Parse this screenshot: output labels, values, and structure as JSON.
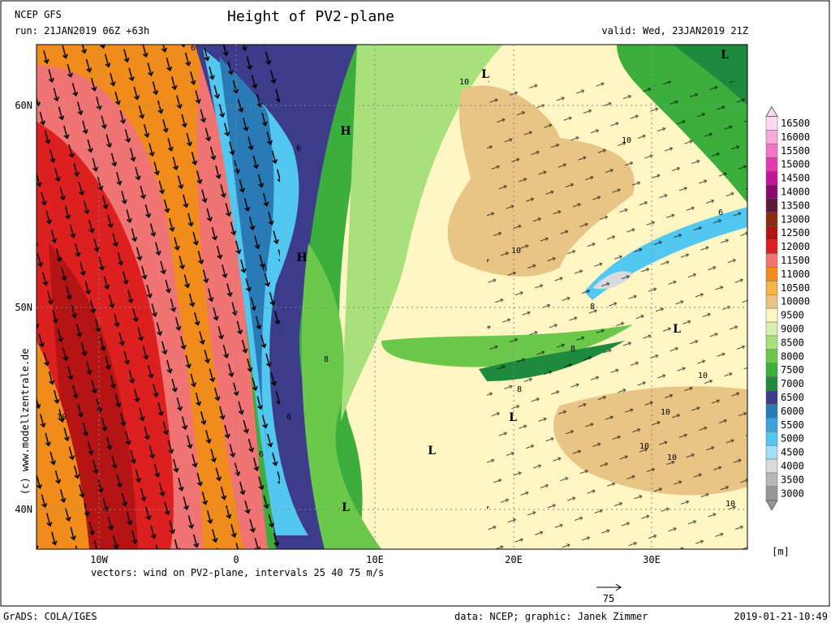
{
  "header": {
    "model": "NCEP GFS",
    "title": "Height of PV2-plane",
    "run": "run: 21JAN2019 06Z +63h",
    "valid": "valid: Wed, 23JAN2019 21Z"
  },
  "map": {
    "lat_labels": [
      "60N",
      "50N",
      "40N"
    ],
    "lon_labels": [
      "10W",
      "0",
      "10E",
      "20E",
      "30E"
    ],
    "pressure_labels": [
      "H",
      "H",
      "L",
      "L",
      "L",
      "L",
      "L",
      "L"
    ],
    "contour_labels": [
      "6",
      "10",
      "10",
      "6",
      "6",
      "10",
      "6",
      "8",
      "8",
      "8",
      "8",
      "10",
      "10",
      "10",
      "10",
      "6",
      "6",
      "10",
      "10"
    ],
    "copyright": "(c) www.modellzentrale.de"
  },
  "legend": {
    "unit": "[m]",
    "levels": [
      {
        "label": "16500",
        "color": "#fcd9ee"
      },
      {
        "label": "16000",
        "color": "#f9a9da"
      },
      {
        "label": "15500",
        "color": "#f474c6"
      },
      {
        "label": "15000",
        "color": "#e43cb0"
      },
      {
        "label": "14500",
        "color": "#c4149a"
      },
      {
        "label": "14000",
        "color": "#8a0a6e"
      },
      {
        "label": "13500",
        "color": "#5c1a3a"
      },
      {
        "label": "13000",
        "color": "#8c2a12"
      },
      {
        "label": "12500",
        "color": "#b41414"
      },
      {
        "label": "12000",
        "color": "#dc2020"
      },
      {
        "label": "11500",
        "color": "#f07474"
      },
      {
        "label": "11000",
        "color": "#f08c1c"
      },
      {
        "label": "10500",
        "color": "#f7b446"
      },
      {
        "label": "10000",
        "color": "#e9c585"
      },
      {
        "label": "9500",
        "color": "#fff6c4"
      },
      {
        "label": "9000",
        "color": "#d8f0ae"
      },
      {
        "label": "8500",
        "color": "#a8e07c"
      },
      {
        "label": "8000",
        "color": "#6cc84a"
      },
      {
        "label": "7500",
        "color": "#3cae3c"
      },
      {
        "label": "7000",
        "color": "#1e8a3e"
      },
      {
        "label": "6500",
        "color": "#3c3c8a"
      },
      {
        "label": "6000",
        "color": "#2a7ab6"
      },
      {
        "label": "5500",
        "color": "#3ca2dc"
      },
      {
        "label": "5000",
        "color": "#52c8f0"
      },
      {
        "label": "4500",
        "color": "#a2e0f8"
      },
      {
        "label": "4000",
        "color": "#dadada"
      },
      {
        "label": "3500",
        "color": "#b6b6b6"
      },
      {
        "label": "3000",
        "color": "#989898"
      }
    ]
  },
  "footer": {
    "vectors": "vectors: wind on PV2-plane, intervals 25 40 75 m/s",
    "ref_vector": "75",
    "software": "GrADS: COLA/IGES",
    "credits": "data: NCEP; graphic: Janek Zimmer",
    "timestamp": "2019-01-21-10:49"
  }
}
